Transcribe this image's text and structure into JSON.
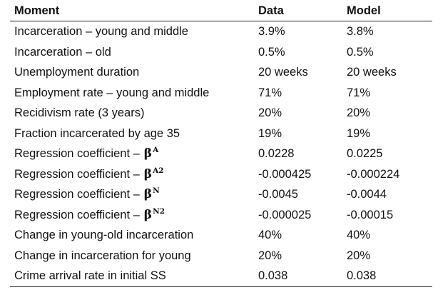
{
  "table": {
    "headers": {
      "moment": "Moment",
      "data": "Data",
      "model": "Model"
    },
    "rows": [
      {
        "moment": "Incarceration – young and middle",
        "data": "3.9%",
        "model": "3.8%"
      },
      {
        "moment": "Incarceration – old",
        "data": "0.5%",
        "model": "0.5%"
      },
      {
        "moment": "Unemployment duration",
        "data": "20 weeks",
        "model": "20 weeks"
      },
      {
        "moment": "Employment rate – young and middle",
        "data": "71%",
        "model": "71%"
      },
      {
        "moment": "Recidivism rate (3 years)",
        "data": "20%",
        "model": "20%"
      },
      {
        "moment": "Fraction incarcerated by age 35",
        "data": "19%",
        "model": "19%"
      },
      {
        "moment": "Regression coefficient –",
        "beta": "β",
        "sup": "A",
        "data": "0.0228",
        "model": "0.0225"
      },
      {
        "moment": "Regression coefficient –",
        "beta": "β",
        "sup": "A2",
        "data": "-0.000425",
        "model": "-0.000224"
      },
      {
        "moment": "Regression coefficient –",
        "beta": "β",
        "sup": "N",
        "data": "-0.0045",
        "model": "-0.0044"
      },
      {
        "moment": "Regression coefficient –",
        "beta": "β",
        "sup": "N2",
        "data": "-0.000025",
        "model": "-0.00015"
      },
      {
        "moment": "Change in young-old incarceration",
        "data": "40%",
        "model": "40%"
      },
      {
        "moment": "Change in incarceration for young",
        "data": "20%",
        "model": "20%"
      },
      {
        "moment": "Crime arrival rate in initial SS",
        "data": "0.038",
        "model": "0.038"
      }
    ]
  }
}
